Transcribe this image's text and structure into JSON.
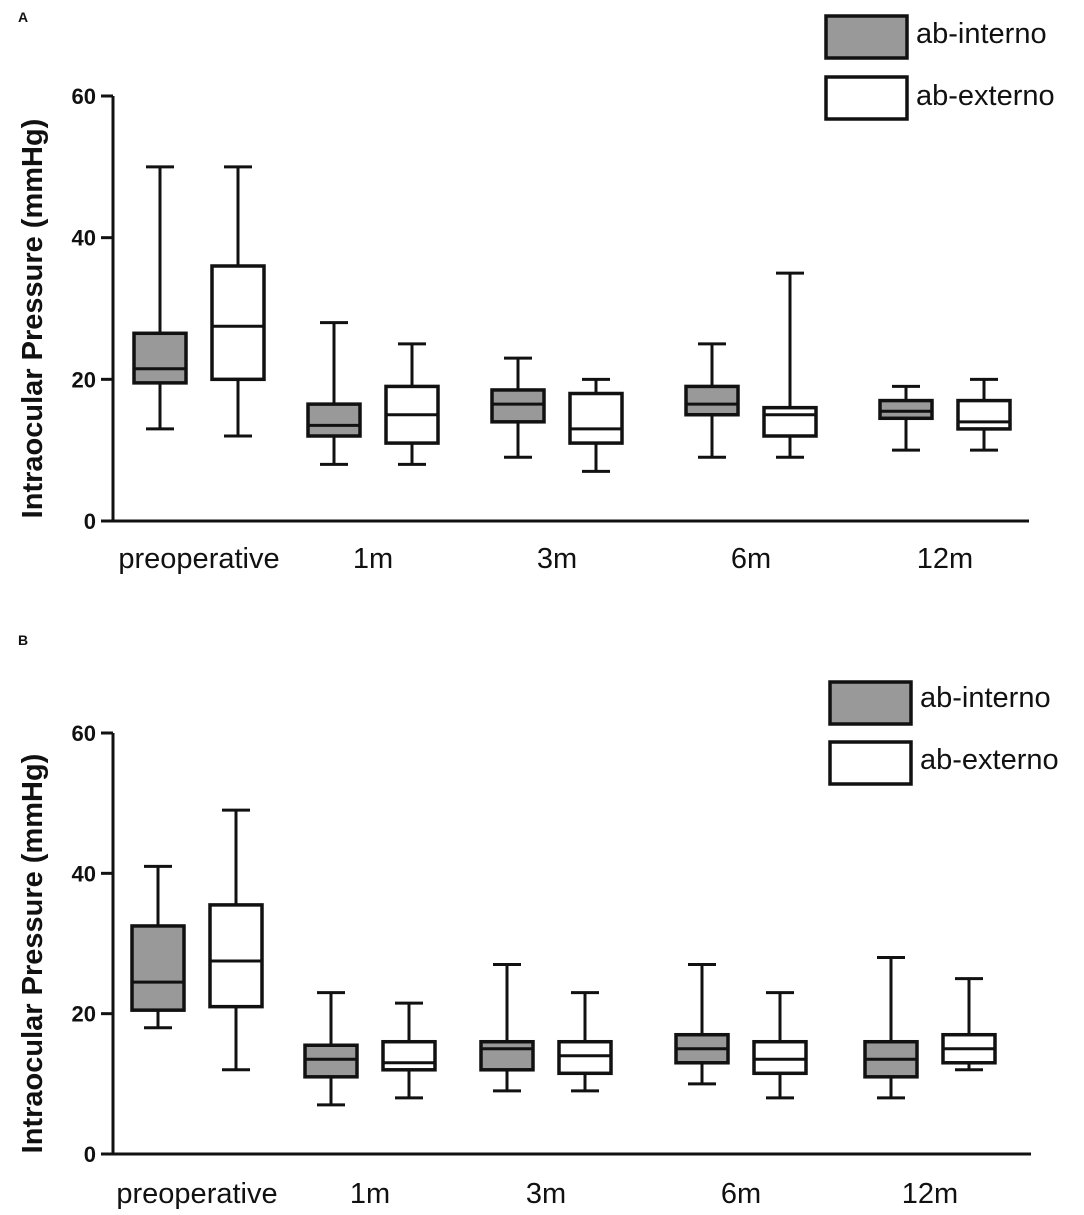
{
  "chart_data": [
    {
      "panel": "A",
      "type": "box",
      "title": "",
      "xlabel": "",
      "ylabel": "Intraocular Pressure (mmHg)",
      "ylim": [
        0,
        60
      ],
      "yticks": [
        0,
        20,
        40,
        60
      ],
      "categories": [
        "preoperative",
        "1m",
        "3m",
        "6m",
        "12m"
      ],
      "legend": [
        "ab-interno",
        "ab-externo"
      ],
      "series": [
        {
          "name": "ab-interno",
          "fill": "#999999",
          "boxes": [
            {
              "min": 13,
              "q1": 19.5,
              "median": 21.5,
              "q3": 26.5,
              "max": 50
            },
            {
              "min": 8,
              "q1": 12,
              "median": 13.5,
              "q3": 16.5,
              "max": 28
            },
            {
              "min": 9,
              "q1": 14,
              "median": 16.5,
              "q3": 18.5,
              "max": 23
            },
            {
              "min": 9,
              "q1": 15,
              "median": 16.5,
              "q3": 19,
              "max": 25
            },
            {
              "min": 10,
              "q1": 14.5,
              "median": 15.5,
              "q3": 17,
              "max": 19
            }
          ]
        },
        {
          "name": "ab-externo",
          "fill": "#ffffff",
          "boxes": [
            {
              "min": 12,
              "q1": 20,
              "median": 27.5,
              "q3": 36,
              "max": 50
            },
            {
              "min": 8,
              "q1": 11,
              "median": 15,
              "q3": 19,
              "max": 25
            },
            {
              "min": 7,
              "q1": 11,
              "median": 13,
              "q3": 18,
              "max": 20
            },
            {
              "min": 9,
              "q1": 12,
              "median": 15,
              "q3": 16,
              "max": 35
            },
            {
              "min": 10,
              "q1": 13,
              "median": 14,
              "q3": 17,
              "max": 20
            }
          ]
        }
      ]
    },
    {
      "panel": "B",
      "type": "box",
      "title": "",
      "xlabel": "",
      "ylabel": "Intraocular Pressure (mmHg)",
      "ylim": [
        0,
        60
      ],
      "yticks": [
        0,
        20,
        40,
        60
      ],
      "categories": [
        "preoperative",
        "1m",
        "3m",
        "6m",
        "12m"
      ],
      "legend": [
        "ab-interno",
        "ab-externo"
      ],
      "series": [
        {
          "name": "ab-interno",
          "fill": "#999999",
          "boxes": [
            {
              "min": 18,
              "q1": 20.5,
              "median": 24.5,
              "q3": 32.5,
              "max": 41
            },
            {
              "min": 7,
              "q1": 11,
              "median": 13.5,
              "q3": 15.5,
              "max": 23
            },
            {
              "min": 9,
              "q1": 12,
              "median": 15,
              "q3": 16,
              "max": 27
            },
            {
              "min": 10,
              "q1": 13,
              "median": 15,
              "q3": 17,
              "max": 27
            },
            {
              "min": 8,
              "q1": 11,
              "median": 13.5,
              "q3": 16,
              "max": 28
            }
          ]
        },
        {
          "name": "ab-externo",
          "fill": "#ffffff",
          "boxes": [
            {
              "min": 12,
              "q1": 21,
              "median": 27.5,
              "q3": 35.5,
              "max": 49
            },
            {
              "min": 8,
              "q1": 12,
              "median": 13,
              "q3": 16,
              "max": 21.5
            },
            {
              "min": 9,
              "q1": 11.5,
              "median": 14,
              "q3": 16,
              "max": 23
            },
            {
              "min": 8,
              "q1": 11.5,
              "median": 13.5,
              "q3": 16,
              "max": 23
            },
            {
              "min": 12,
              "q1": 13,
              "median": 15,
              "q3": 17,
              "max": 25
            }
          ]
        }
      ]
    }
  ]
}
